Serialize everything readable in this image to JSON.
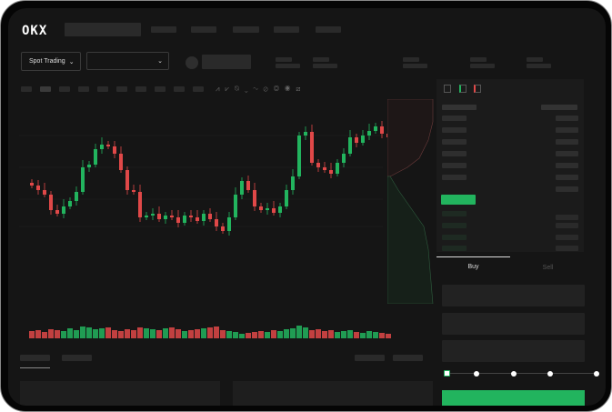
{
  "logo": "OKX",
  "market_selector": {
    "label": "Spot Trading",
    "chevron": "chevron-down-icon"
  },
  "pair_selector": {
    "chevron": "chevron-down-icon"
  },
  "trade_tabs": {
    "buy": "Buy",
    "sell": "Sell",
    "active": "Buy"
  },
  "leverage_slider": {
    "value_percent": 0,
    "stops": 5
  },
  "colors": {
    "up": "#22b45e",
    "down": "#e04848",
    "background": "#151515",
    "panel": "#1b1b1b"
  },
  "chart_data": {
    "type": "candlestick",
    "closes": [
      95,
      90,
      85,
      68,
      64,
      72,
      78,
      88,
      115,
      118,
      135,
      140,
      138,
      130,
      112,
      90,
      88,
      60,
      62,
      64,
      58,
      62,
      60,
      54,
      62,
      60,
      56,
      64,
      58,
      50,
      45,
      60,
      85,
      100,
      90,
      72,
      68,
      70,
      65,
      72,
      90,
      105,
      150,
      154,
      120,
      115,
      112,
      108,
      120,
      130,
      148,
      142,
      150,
      155,
      160,
      152,
      148
    ],
    "volumes": [
      8,
      9,
      7,
      10,
      9,
      8,
      11,
      9,
      13,
      12,
      10,
      11,
      12,
      9,
      8,
      10,
      9,
      12,
      11,
      10,
      9,
      11,
      12,
      10,
      8,
      9,
      10,
      11,
      12,
      13,
      9,
      8,
      7,
      5,
      6,
      7,
      8,
      7,
      9,
      8,
      10,
      11,
      14,
      12,
      9,
      10,
      8,
      9,
      7,
      8,
      9,
      7,
      6,
      8,
      7,
      6,
      5
    ],
    "ylim": [
      30,
      180
    ]
  }
}
